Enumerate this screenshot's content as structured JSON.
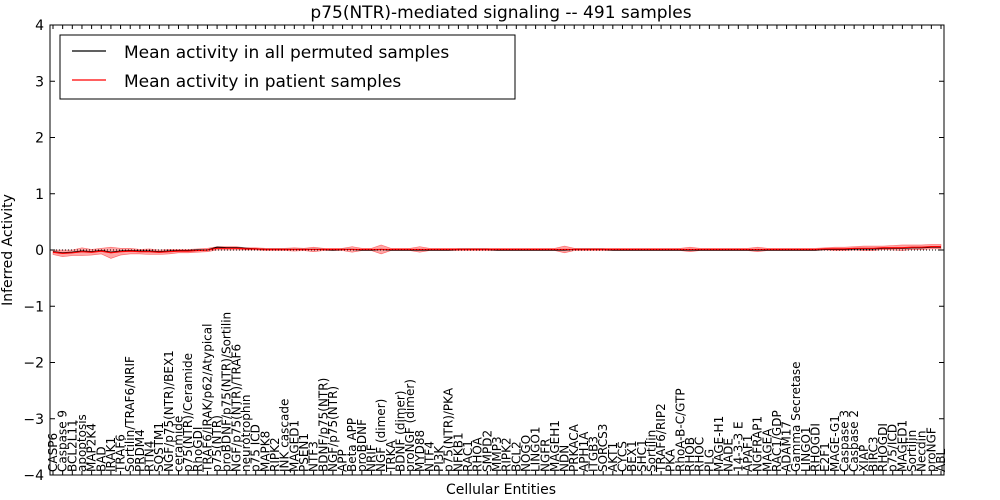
{
  "chart_data": {
    "type": "line",
    "title": "p75(NTR)-mediated signaling -- 491 samples",
    "xlabel": "Cellular Entities",
    "ylabel": "Inferred Activity",
    "ylim": [
      -4,
      4
    ],
    "yticks": [
      -4,
      -3,
      -2,
      -1,
      0,
      1,
      2,
      3,
      4
    ],
    "grid": false,
    "legend_position": "top-left",
    "categories": [
      "CASP6",
      "Caspase 9",
      "BCL2L11",
      "apoptosis",
      "MAP2K4",
      "BAD",
      "IRAK1",
      "TRAF6",
      "Sortilin/TRAF6/NRIF",
      "PRDM4",
      "RTN4",
      "SQSTM1",
      "NGF/p75(NTR)/BEX1",
      "ceramide",
      "p75(NTR)/Ceramide",
      "RhoGDI",
      "TRAF6/IRAK/p62/Atypical",
      "p75(NTR)",
      "proBDNF/p75(NTR)/Sortilin",
      "NGF/p75(NTR)/TRAF6",
      "neurotrophin",
      "p75 ICD",
      "MAPK8",
      "RIPK2",
      "JNK cascade",
      "MAGED1",
      "PSEN1",
      "NTF3",
      "BDNF/p75(NTR)",
      "NGF/p75(NTR)",
      "APP",
      "Beta APP",
      "proBDNF",
      "NRIF",
      "NGF (dimer)",
      "TRKA",
      "BDNF (dimer)",
      "proNGF (dimer)",
      "MYD88",
      "NTF4",
      "PI3K",
      "p75(NTR)/PKA",
      "NFKB1",
      "RAC1",
      "RHOA",
      "SMPD2",
      "MMP3",
      "RIPK2",
      "BCL2",
      "NOGO",
      "LINGO1",
      "NGFR",
      "MAGEH1",
      "NDN",
      "PRKACA",
      "APH1A",
      "ITGB3",
      "SORCS3",
      "AKT1",
      "CYCS",
      "BEX1",
      "SHC1",
      "Sortilin",
      "TRAF6/RIP2",
      "PKA",
      "RhoA-B-C/GTP",
      "RHOB",
      "RHOC",
      "PLG",
      "MAGE-H1",
      "NADE",
      "14-3-3 E",
      "APAF1",
      "NGFRAP1",
      "MAGEA",
      "RAC1/GDP",
      "ADAM17",
      "Gamma Secretase",
      "LINGO1",
      "RHOGDI",
      "E2F1",
      "MAGE-G1",
      "Caspase 3",
      "Caspase 2",
      "XIAP",
      "BIRC3",
      "RHOGDI",
      "p75/ICD",
      "MAGED1",
      "Sortilin",
      "Necdin",
      "proNGF",
      "ABL"
    ],
    "series": [
      {
        "name": "Mean activity in all permuted samples",
        "color": "#000000",
        "values": [
          -0.03,
          -0.05,
          -0.04,
          -0.02,
          -0.03,
          -0.01,
          -0.04,
          -0.02,
          -0.01,
          -0.02,
          -0.02,
          -0.03,
          -0.02,
          -0.01,
          -0.01,
          0.0,
          0.0,
          0.05,
          0.04,
          0.04,
          0.03,
          0.02,
          0.01,
          0.01,
          0.01,
          0.01,
          0.01,
          0.01,
          0.01,
          0.0,
          0.01,
          0.01,
          0.0,
          0.0,
          0.01,
          0.0,
          0.0,
          0.0,
          0.0,
          0.0,
          0.0,
          0.0,
          0.01,
          0.01,
          0.01,
          0.01,
          0.0,
          0.0,
          0.0,
          0.0,
          0.0,
          0.0,
          0.0,
          0.0,
          0.01,
          0.01,
          0.01,
          0.01,
          0.0,
          0.0,
          0.0,
          0.0,
          0.0,
          0.0,
          0.0,
          0.0,
          0.0,
          0.0,
          0.0,
          0.0,
          0.0,
          0.0,
          0.0,
          0.0,
          0.0,
          0.0,
          0.0,
          0.0,
          0.0,
          0.0,
          0.01,
          0.01,
          0.01,
          0.02,
          0.02,
          0.02,
          0.03,
          0.03,
          0.03,
          0.04,
          0.04,
          0.05,
          0.05
        ]
      },
      {
        "name": "Mean activity in patient samples",
        "color": "#ff0000",
        "values": [
          -0.04,
          -0.06,
          -0.05,
          -0.03,
          -0.04,
          -0.02,
          -0.05,
          -0.03,
          -0.02,
          -0.03,
          -0.03,
          -0.04,
          -0.03,
          -0.02,
          -0.02,
          -0.01,
          0.0,
          0.03,
          0.03,
          0.03,
          0.02,
          0.02,
          0.01,
          0.01,
          0.01,
          0.01,
          0.01,
          0.01,
          0.01,
          0.01,
          0.01,
          0.01,
          0.01,
          0.01,
          0.01,
          0.01,
          0.01,
          0.01,
          0.01,
          0.01,
          0.01,
          0.01,
          0.01,
          0.01,
          0.01,
          0.01,
          0.01,
          0.01,
          0.01,
          0.01,
          0.01,
          0.01,
          0.01,
          0.01,
          0.01,
          0.01,
          0.01,
          0.01,
          0.01,
          0.01,
          0.01,
          0.01,
          0.01,
          0.01,
          0.01,
          0.01,
          0.01,
          0.01,
          0.01,
          0.01,
          0.01,
          0.01,
          0.01,
          0.01,
          0.01,
          0.01,
          0.01,
          0.01,
          0.01,
          0.01,
          0.02,
          0.02,
          0.02,
          0.03,
          0.03,
          0.03,
          0.04,
          0.04,
          0.04,
          0.05,
          0.05,
          0.06,
          0.06
        ],
        "band_halfwidth": [
          0.04,
          0.06,
          0.05,
          0.07,
          0.05,
          0.05,
          0.1,
          0.06,
          0.05,
          0.04,
          0.05,
          0.04,
          0.04,
          0.03,
          0.03,
          0.03,
          0.03,
          0.03,
          0.03,
          0.03,
          0.02,
          0.02,
          0.02,
          0.02,
          0.02,
          0.03,
          0.02,
          0.04,
          0.02,
          0.02,
          0.02,
          0.05,
          0.02,
          0.02,
          0.08,
          0.02,
          0.02,
          0.02,
          0.05,
          0.02,
          0.02,
          0.02,
          0.02,
          0.02,
          0.02,
          0.02,
          0.02,
          0.02,
          0.02,
          0.02,
          0.02,
          0.02,
          0.02,
          0.06,
          0.02,
          0.02,
          0.02,
          0.02,
          0.02,
          0.02,
          0.02,
          0.02,
          0.02,
          0.02,
          0.02,
          0.02,
          0.04,
          0.02,
          0.02,
          0.02,
          0.02,
          0.02,
          0.02,
          0.04,
          0.02,
          0.02,
          0.02,
          0.02,
          0.02,
          0.02,
          0.02,
          0.03,
          0.03,
          0.03,
          0.04,
          0.04,
          0.03,
          0.04,
          0.05,
          0.04,
          0.04,
          0.04,
          0.04
        ]
      }
    ],
    "zero_line": 0
  }
}
